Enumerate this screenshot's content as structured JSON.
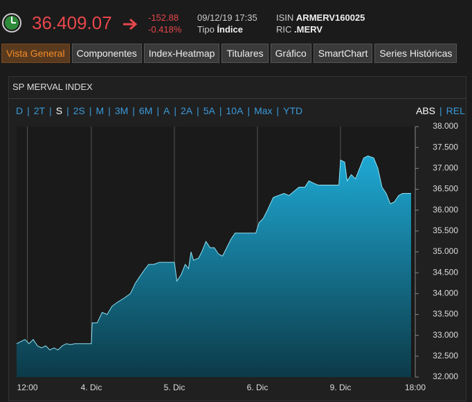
{
  "header": {
    "price": "36.409.07",
    "change": "-152.88",
    "change_pct": "-0.418%",
    "datetime": "09/12/19 17:35",
    "type_label": "Tipo",
    "type_value": "Índice",
    "isin_label": "ISIN",
    "isin_value": "ARMERV160025",
    "ric_label": "RIC",
    "ric_value": ".MERV"
  },
  "tabs": [
    {
      "label": "Vista General",
      "active": true
    },
    {
      "label": "Componentes"
    },
    {
      "label": "Index-Heatmap"
    },
    {
      "label": "Titulares"
    },
    {
      "label": "Gráfico"
    },
    {
      "label": "SmartChart"
    },
    {
      "label": "Series Históricas"
    }
  ],
  "panel": {
    "title": "SP MERVAL INDEX",
    "ranges": [
      {
        "label": "D"
      },
      {
        "label": "2T"
      },
      {
        "label": "S",
        "active": true
      },
      {
        "label": "2S"
      },
      {
        "label": "M"
      },
      {
        "label": "3M"
      },
      {
        "label": "6M"
      },
      {
        "label": "A"
      },
      {
        "label": "2A"
      },
      {
        "label": "5A"
      },
      {
        "label": "10A"
      },
      {
        "label": "Max"
      },
      {
        "label": "YTD"
      }
    ],
    "modes": [
      {
        "label": "ABS",
        "active": true
      },
      {
        "label": "REL"
      }
    ]
  },
  "chart_data": {
    "type": "area",
    "color": "#1ea9d4",
    "line_color": "#8fe3f5",
    "x": [
      0,
      0.5,
      1,
      1.5,
      2,
      2.5,
      3,
      3.5,
      4,
      4.5,
      5,
      5.5,
      6,
      6.5,
      7,
      9,
      9.1,
      9.7,
      10.3,
      10.9,
      11.5,
      12.2,
      13,
      13.7,
      14.3,
      14.8,
      15.5,
      15.9,
      16.5,
      17.2,
      19,
      19.3,
      19.8,
      20.3,
      20.7,
      21,
      21.3,
      21.9,
      22.3,
      22.8,
      23.3,
      23.8,
      24.3,
      24.8,
      25.3,
      25.8,
      26.3,
      28.8,
      29.2,
      29.7,
      30.2,
      30.9,
      31.5,
      32.2,
      32.8,
      33.4,
      34,
      34.7,
      35.2,
      35.7,
      36.3,
      37,
      38.8,
      39,
      39.5,
      39.8,
      40.3,
      40.8,
      41.3,
      41.8,
      42.3,
      43,
      43.5,
      44,
      44.5,
      45,
      45.5,
      46,
      46.5,
      47.5
    ],
    "values": [
      32800,
      32850,
      32900,
      32800,
      32900,
      32750,
      32700,
      32750,
      32650,
      32700,
      32650,
      32750,
      32800,
      32780,
      32800,
      32800,
      33300,
      33300,
      33550,
      33500,
      33700,
      33800,
      33900,
      34000,
      34250,
      34400,
      34600,
      34700,
      34700,
      34750,
      34750,
      34300,
      34450,
      34700,
      34600,
      35000,
      34800,
      34850,
      35000,
      35250,
      35100,
      35100,
      34950,
      34900,
      35100,
      35300,
      35450,
      35450,
      35700,
      35800,
      36000,
      36300,
      36350,
      36400,
      36350,
      36450,
      36550,
      36550,
      36700,
      36650,
      36600,
      36600,
      36600,
      37200,
      37150,
      36700,
      36850,
      36750,
      37000,
      37250,
      37300,
      37250,
      37000,
      36550,
      36400,
      36150,
      36200,
      36350,
      36400,
      36400
    ],
    "xlim": [
      0,
      48
    ],
    "xticks": [
      {
        "value": 1.3,
        "label": "12:00"
      },
      {
        "value": 9,
        "label": "4. Dic"
      },
      {
        "value": 19,
        "label": "5. Dic"
      },
      {
        "value": 29,
        "label": "6. Dic"
      },
      {
        "value": 39,
        "label": "9. Dic"
      },
      {
        "value": 48,
        "label": "18:00"
      }
    ],
    "ylim": [
      32000,
      38000
    ],
    "yticks": [
      {
        "value": 32000,
        "label": "32.000"
      },
      {
        "value": 32500,
        "label": "32.500"
      },
      {
        "value": 33000,
        "label": "33.000"
      },
      {
        "value": 33500,
        "label": "33.500"
      },
      {
        "value": 34000,
        "label": "34.000"
      },
      {
        "value": 34500,
        "label": "34.500"
      },
      {
        "value": 35000,
        "label": "35.000"
      },
      {
        "value": 35500,
        "label": "35.500"
      },
      {
        "value": 36000,
        "label": "36.000"
      },
      {
        "value": 36500,
        "label": "36.500"
      },
      {
        "value": 37000,
        "label": "37.000"
      },
      {
        "value": 37500,
        "label": "37.500"
      },
      {
        "value": 38000,
        "label": "38.000"
      }
    ],
    "grid": "x"
  }
}
